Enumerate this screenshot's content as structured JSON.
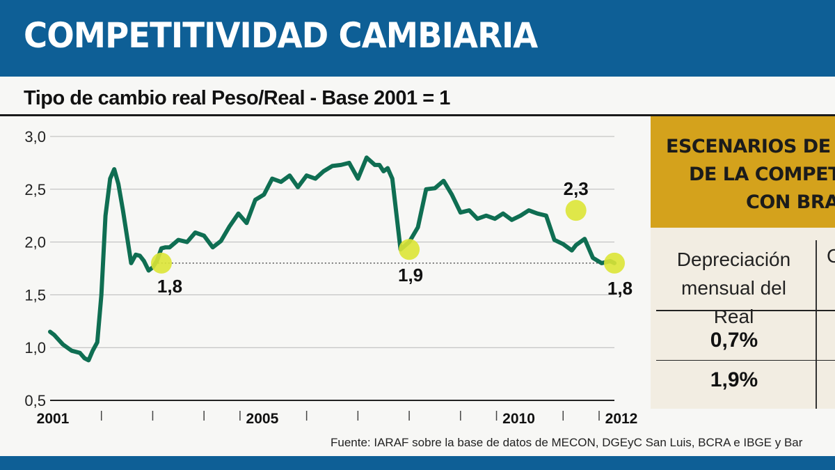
{
  "header": {
    "title": "COMPETITIVIDAD CAMBIARIA"
  },
  "subtitle": "Tipo de cambio real Peso/Real - Base 2001 = 1",
  "chart_data": {
    "type": "line",
    "title": "Tipo de cambio real Peso/Real - Base 2001 = 1",
    "xlabel": "",
    "ylabel": "",
    "xlim": [
      2001,
      2012.5
    ],
    "ylim": [
      0.5,
      3.0
    ],
    "y_ticks": [
      "0,5",
      "1,0",
      "1,5",
      "2,0",
      "2,5",
      "3,0"
    ],
    "y_tick_values": [
      0.5,
      1.0,
      1.5,
      2.0,
      2.5,
      3.0
    ],
    "x_tick_labels": [
      "2001",
      "2005",
      "2010",
      "2012"
    ],
    "x_tick_values": [
      2001,
      2005,
      2010,
      2012
    ],
    "x_minor_ticks": [
      2002,
      2003,
      2004,
      2006,
      2007,
      2008,
      2009,
      2011
    ],
    "grid": true,
    "line_color": "#0f6e52",
    "highlight_color": "#dbe436",
    "reference_line": {
      "y": 1.8,
      "from": 2003.1,
      "to": 2012.0,
      "style": "dotted"
    },
    "series": [
      {
        "values_x": [
          2001.0,
          2001.08,
          2001.25,
          2001.42,
          2001.58,
          2001.67,
          2001.75,
          2001.83,
          2001.92,
          2002.0,
          2002.08,
          2002.17,
          2002.25,
          2002.33,
          2002.42,
          2002.5,
          2002.58,
          2002.67,
          2002.75,
          2002.83,
          2002.92,
          2003.0,
          2003.08,
          2003.17,
          2003.25,
          2003.33,
          2003.5,
          2003.67,
          2003.83,
          2004.0,
          2004.17,
          2004.33,
          2004.5,
          2004.67,
          2004.83,
          2005.0,
          2005.17,
          2005.33,
          2005.5,
          2005.67,
          2005.83,
          2006.0,
          2006.17,
          2006.33,
          2006.5,
          2006.67,
          2006.83,
          2007.0,
          2007.17,
          2007.33,
          2007.42,
          2007.5,
          2007.58,
          2007.67,
          2007.83,
          2008.0,
          2008.17,
          2008.33,
          2008.5,
          2008.67,
          2008.83,
          2009.0,
          2009.17,
          2009.33,
          2009.5,
          2009.67,
          2009.83,
          2010.0,
          2010.17,
          2010.33,
          2010.5,
          2010.67,
          2010.83,
          2011.0,
          2011.17,
          2011.25,
          2011.42,
          2011.58,
          2011.75,
          2011.92,
          2012.0
        ],
        "values": [
          1.15,
          1.12,
          1.03,
          0.97,
          0.95,
          0.9,
          0.88,
          0.97,
          1.05,
          1.5,
          2.25,
          2.6,
          2.69,
          2.55,
          2.3,
          2.05,
          1.8,
          1.88,
          1.87,
          1.82,
          1.73,
          1.76,
          1.82,
          1.94,
          1.95,
          1.95,
          2.02,
          2.0,
          2.09,
          2.06,
          1.95,
          2.01,
          2.15,
          2.27,
          2.18,
          2.4,
          2.45,
          2.6,
          2.57,
          2.63,
          2.52,
          2.63,
          2.6,
          2.67,
          2.72,
          2.73,
          2.75,
          2.6,
          2.8,
          2.73,
          2.73,
          2.67,
          2.7,
          2.6,
          1.93,
          2.0,
          2.14,
          2.5,
          2.51,
          2.58,
          2.45,
          2.28,
          2.3,
          2.22,
          2.25,
          2.22,
          2.27,
          2.21,
          2.25,
          2.3,
          2.27,
          2.25,
          2.02,
          1.98,
          1.92,
          1.97,
          2.03,
          1.85,
          1.8,
          1.82,
          1.8
        ]
      }
    ],
    "annotations": [
      {
        "x": 2003.17,
        "y": 1.8,
        "label": "1,8"
      },
      {
        "x": 2008.0,
        "y": 1.93,
        "label": "1,9"
      },
      {
        "x": 2011.25,
        "y": 2.3,
        "label": "2,3"
      },
      {
        "x": 2012.0,
        "y": 1.8,
        "label": "1,8"
      }
    ]
  },
  "sidebar": {
    "title_lines": [
      "ESCENARIOS DE",
      "DE LA COMPET",
      "CON BRA"
    ],
    "col1_header": [
      "Depreciación",
      "mensual del Real"
    ],
    "col2_header": "C",
    "rows": [
      "0,7%",
      "1,9%"
    ]
  },
  "source": "Fuente: IARAF sobre la base de datos de MECON, DGEyC San Luis, BCRA e IBGE y Bar"
}
